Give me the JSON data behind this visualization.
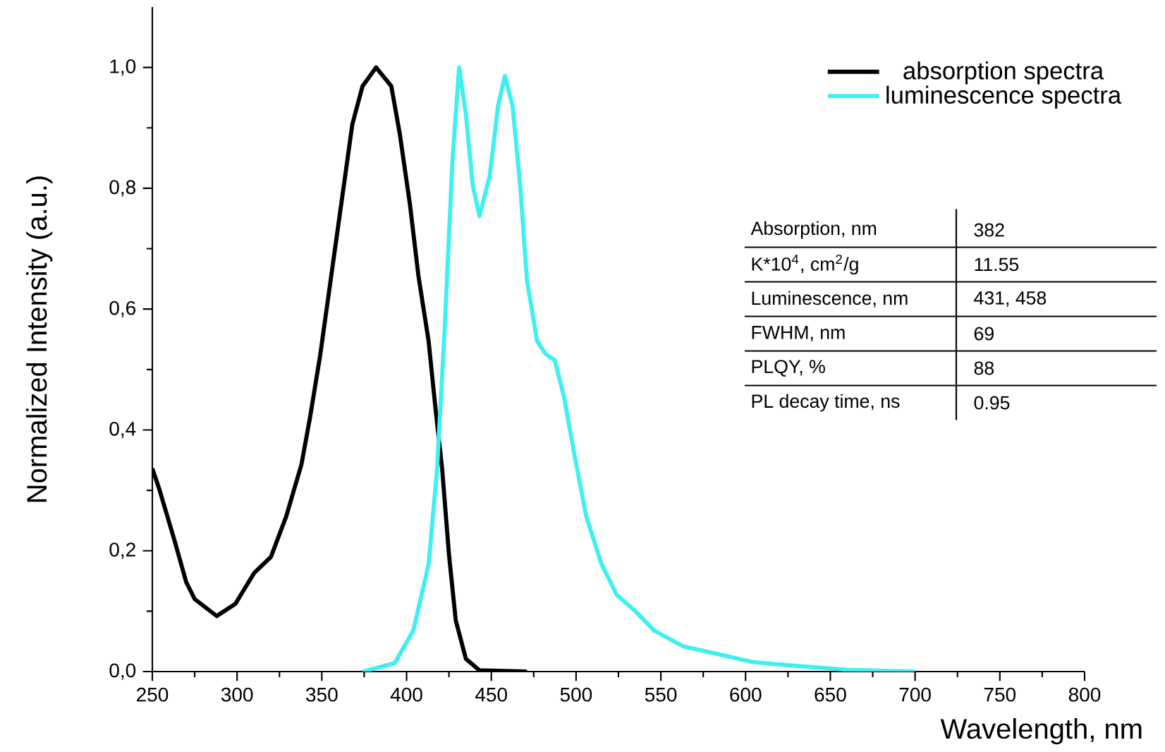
{
  "chart_data": {
    "type": "line",
    "xlabel": "Wavelength, nm",
    "ylabel": "Normalized Intensity (a.u.)",
    "xlim": [
      250,
      800
    ],
    "ylim": [
      0,
      1.1
    ],
    "xticks": [
      250,
      300,
      350,
      400,
      450,
      500,
      550,
      600,
      650,
      700,
      750,
      800,
      {
        "value": 275,
        "label": null
      },
      {
        "value": 325,
        "label": null
      },
      {
        "value": 375,
        "label": null
      },
      {
        "value": 425,
        "label": null
      },
      {
        "value": 475,
        "label": null
      },
      {
        "value": 525,
        "label": null
      },
      {
        "value": 575,
        "label": null
      },
      {
        "value": 625,
        "label": null
      },
      {
        "value": 675,
        "label": null
      },
      {
        "value": 725,
        "label": null
      },
      {
        "value": 775,
        "label": null
      }
    ],
    "yticks": [
      {
        "value": 0,
        "label": "0,0"
      },
      {
        "value": 0.2,
        "label": "0,2"
      },
      {
        "value": 0.4,
        "label": "0,4"
      },
      {
        "value": 0.6,
        "label": "0,6"
      },
      {
        "value": 0.8,
        "label": "0,8"
      },
      {
        "value": 1.0,
        "label": "1,0"
      },
      {
        "value": 0.1,
        "label": null
      },
      {
        "value": 0.3,
        "label": null
      },
      {
        "value": 0.5,
        "label": null
      },
      {
        "value": 0.7,
        "label": null
      },
      {
        "value": 0.9,
        "label": null
      }
    ],
    "legend": "top right",
    "grid": false,
    "marker": "none",
    "line_style": "solid",
    "series": [
      {
        "name": "absorption spectra",
        "color": "#000000",
        "x": [
          250,
          254,
          263,
          270,
          275,
          288,
          299,
          310,
          320,
          329,
          338,
          343,
          349,
          356,
          363,
          368,
          374,
          382,
          391,
          396,
          402,
          407,
          413,
          417,
          421,
          425,
          429,
          435,
          443,
          471
        ],
        "values": [
          0.336,
          0.303,
          0.218,
          0.148,
          0.12,
          0.092,
          0.112,
          0.163,
          0.19,
          0.257,
          0.343,
          0.42,
          0.523,
          0.664,
          0.805,
          0.906,
          0.969,
          1.0,
          0.969,
          0.89,
          0.773,
          0.655,
          0.547,
          0.437,
          0.335,
          0.194,
          0.085,
          0.021,
          0.002,
          0.0
        ]
      },
      {
        "name": "luminescence spectra",
        "color": "#3ff0f0",
        "x": [
          374,
          393,
          404,
          413,
          418,
          422.5,
          427,
          431,
          435,
          439,
          443,
          449,
          454,
          458,
          462.5,
          467,
          471,
          477,
          482,
          487.5,
          493,
          499,
          506,
          515,
          524,
          535,
          546,
          563,
          582,
          604,
          627,
          660,
          700
        ],
        "values": [
          0.0,
          0.014,
          0.068,
          0.178,
          0.335,
          0.57,
          0.843,
          1.0,
          0.922,
          0.805,
          0.754,
          0.82,
          0.937,
          0.986,
          0.937,
          0.805,
          0.648,
          0.547,
          0.526,
          0.515,
          0.453,
          0.359,
          0.257,
          0.178,
          0.127,
          0.1,
          0.068,
          0.042,
          0.03,
          0.016,
          0.01,
          0.003,
          0.0
        ]
      }
    ],
    "annotations": [
      "Absorption, nm",
      "382",
      "K*10$^{4}$, cm$^{2}$/g",
      "11.55",
      "Luminescence, nm",
      "431, 458",
      "FWHM, nm",
      "69",
      "PLQY, %",
      "88",
      "PL decay time, ns",
      "0.95"
    ]
  }
}
